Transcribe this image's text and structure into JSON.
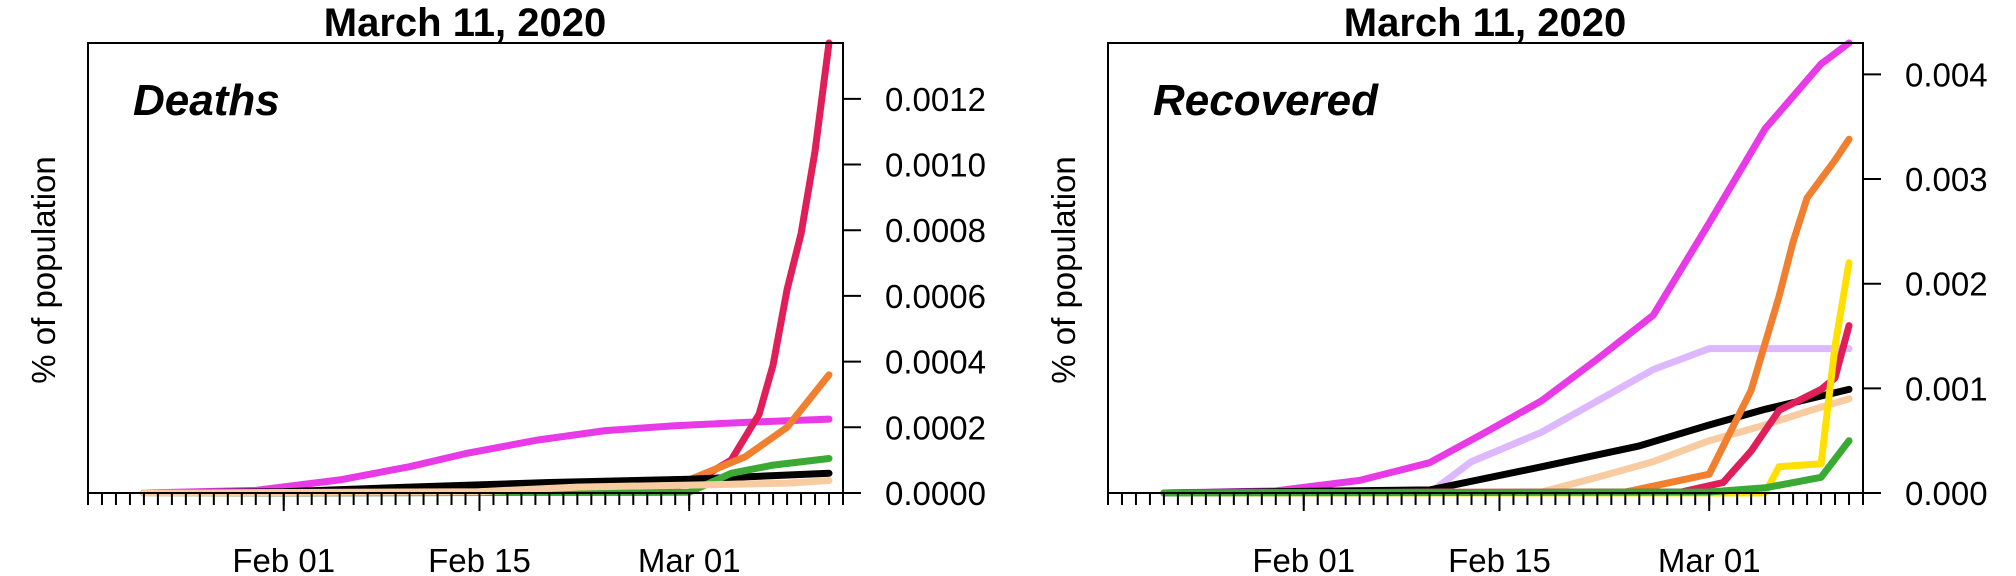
{
  "chart_data": [
    {
      "type": "line",
      "title": "March 11, 2020",
      "annotation": "Deaths",
      "ylabel": "% of population",
      "y_axis_side": "right",
      "x_ticks": [
        "Feb 01",
        "Feb 15",
        "Mar 01"
      ],
      "y_ticks": [
        "0.0000",
        "0.0002",
        "0.0004",
        "0.0006",
        "0.0008",
        "0.0010",
        "0.0012"
      ],
      "ylim": [
        0,
        0.00137
      ],
      "series": [
        {
          "color": "#E83AE6",
          "x": [
            "2020-01-22",
            "2020-01-30",
            "2020-02-05",
            "2020-02-10",
            "2020-02-14",
            "2020-02-19",
            "2020-02-24",
            "2020-02-29",
            "2020-03-05",
            "2020-03-11"
          ],
          "values": [
            0,
            8e-06,
            4e-05,
            8e-05,
            0.00012,
            0.00016,
            0.00019,
            0.000205,
            0.000215,
            0.000225
          ]
        },
        {
          "color": "#E01E5A",
          "x": [
            "2020-01-22",
            "2020-02-28",
            "2020-03-02",
            "2020-03-04",
            "2020-03-06",
            "2020-03-07",
            "2020-03-08",
            "2020-03-09",
            "2020-03-10",
            "2020-03-11"
          ],
          "values": [
            0,
            2.5e-06,
            5e-05,
            0.0001,
            0.00024,
            0.00039,
            0.00062,
            0.00079,
            0.00104,
            0.00137
          ]
        },
        {
          "color": "#F08030",
          "x": [
            "2020-01-22",
            "2020-02-25",
            "2020-03-01",
            "2020-03-05",
            "2020-03-08",
            "2020-03-11"
          ],
          "values": [
            0,
            4e-06,
            4e-05,
            0.00011,
            0.0002,
            0.00036
          ]
        },
        {
          "color": "#000000",
          "x": [
            "2020-01-22",
            "2020-02-01",
            "2020-02-10",
            "2020-02-20",
            "2020-03-01",
            "2020-03-11"
          ],
          "values": [
            0,
            4e-06,
            1.8e-05,
            3.2e-05,
            4.2e-05,
            6e-05
          ]
        },
        {
          "color": "#3AAA35",
          "x": [
            "2020-01-22",
            "2020-03-01",
            "2020-03-04",
            "2020-03-07",
            "2020-03-11"
          ],
          "values": [
            0,
            2e-06,
            6e-05,
            8.5e-05,
            0.000105
          ]
        },
        {
          "color": "#F9CBA0",
          "x": [
            "2020-01-22",
            "2020-02-15",
            "2020-02-22",
            "2020-03-01",
            "2020-03-08",
            "2020-03-11"
          ],
          "values": [
            0,
            4e-06,
            1.8e-05,
            2.4e-05,
            3e-05,
            3.8e-05
          ]
        }
      ]
    },
    {
      "type": "line",
      "title": "March 11, 2020",
      "annotation": "Recovered",
      "ylabel": "% of population",
      "y_axis_side": "right",
      "x_ticks": [
        "Feb 01",
        "Feb 15",
        "Mar 01"
      ],
      "y_ticks": [
        "0.000",
        "0.001",
        "0.002",
        "0.003",
        "0.004"
      ],
      "ylim": [
        0,
        0.0043
      ],
      "series": [
        {
          "color": "#E83AE6",
          "x": [
            "2020-01-22",
            "2020-01-30",
            "2020-02-05",
            "2020-02-10",
            "2020-02-14",
            "2020-02-18",
            "2020-02-22",
            "2020-02-26",
            "2020-03-01",
            "2020-03-05",
            "2020-03-09",
            "2020-03-11"
          ],
          "values": [
            0,
            2e-05,
            0.00012,
            0.00029,
            0.00058,
            0.00088,
            0.00128,
            0.0017,
            0.00258,
            0.00348,
            0.0041,
            0.0043
          ]
        },
        {
          "color": "#DDB8FF",
          "x": [
            "2020-01-22",
            "2020-02-10",
            "2020-02-13",
            "2020-02-18",
            "2020-02-22",
            "2020-02-26",
            "2020-03-01",
            "2020-03-11"
          ],
          "values": [
            0,
            0.0,
            0.0003,
            0.00058,
            0.00088,
            0.00118,
            0.00138,
            0.00138
          ]
        },
        {
          "color": "#000000",
          "x": [
            "2020-01-22",
            "2020-02-10",
            "2020-02-18",
            "2020-02-25",
            "2020-03-01",
            "2020-03-05",
            "2020-03-11"
          ],
          "values": [
            0,
            3e-05,
            0.00025,
            0.00045,
            0.00065,
            0.0008,
            0.00099
          ]
        },
        {
          "color": "#F9CBA0",
          "x": [
            "2020-01-22",
            "2020-02-18",
            "2020-02-22",
            "2020-02-26",
            "2020-03-01",
            "2020-03-05",
            "2020-03-08",
            "2020-03-11"
          ],
          "values": [
            0,
            1e-05,
            0.00015,
            0.0003,
            0.0005,
            0.00065,
            0.00078,
            0.0009
          ]
        },
        {
          "color": "#F08030",
          "x": [
            "2020-01-22",
            "2020-02-24",
            "2020-03-01",
            "2020-03-04",
            "2020-03-06",
            "2020-03-07",
            "2020-03-08",
            "2020-03-10",
            "2020-03-11"
          ],
          "values": [
            0,
            1e-05,
            0.00018,
            0.00098,
            0.00188,
            0.0024,
            0.00282,
            0.00318,
            0.00338
          ]
        },
        {
          "color": "#E01E5A",
          "x": [
            "2020-01-22",
            "2020-02-28",
            "2020-03-02",
            "2020-03-04",
            "2020-03-06",
            "2020-03-09",
            "2020-03-10",
            "2020-03-11"
          ],
          "values": [
            0,
            1e-05,
            0.0001,
            0.0004,
            0.00079,
            0.00099,
            0.0011,
            0.0016
          ]
        },
        {
          "color": "#FFE000",
          "x": [
            "2020-01-22",
            "2020-03-05",
            "2020-03-06",
            "2020-03-09",
            "2020-03-10",
            "2020-03-11"
          ],
          "values": [
            0,
            0,
            0.00025,
            0.00028,
            0.0014,
            0.0022
          ]
        },
        {
          "color": "#3AAA35",
          "x": [
            "2020-01-22",
            "2020-03-01",
            "2020-03-05",
            "2020-03-09",
            "2020-03-11"
          ],
          "values": [
            0,
            1e-05,
            5e-05,
            0.00015,
            0.0005
          ]
        }
      ]
    }
  ]
}
